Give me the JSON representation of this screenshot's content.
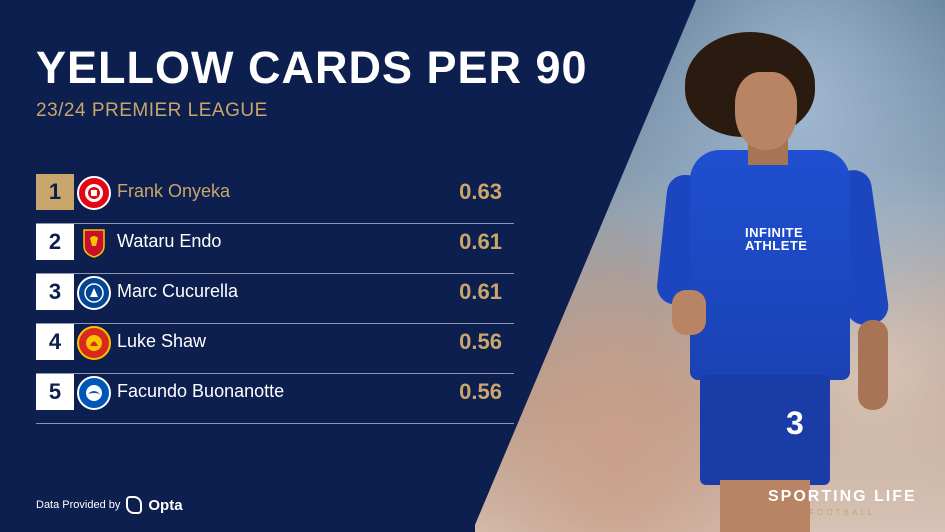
{
  "header": {
    "title": "YELLOW CARDS PER 90",
    "subtitle": "23/24 PREMIER LEAGUE"
  },
  "ranking": [
    {
      "rank": "1",
      "player": "Frank Onyeka",
      "value": "0.63",
      "crest": "brentford-crest-icon",
      "crest_color": "#e30613"
    },
    {
      "rank": "2",
      "player": "Wataru Endo",
      "value": "0.61",
      "crest": "liverpool-crest-icon",
      "crest_color": "#c8102e"
    },
    {
      "rank": "3",
      "player": "Marc Cucurella",
      "value": "0.61",
      "crest": "chelsea-crest-icon",
      "crest_color": "#034694"
    },
    {
      "rank": "4",
      "player": "Luke Shaw",
      "value": "0.56",
      "crest": "man-utd-crest-icon",
      "crest_color": "#da291c"
    },
    {
      "rank": "5",
      "player": "Facundo Buonanotte",
      "value": "0.56",
      "crest": "brighton-crest-icon",
      "crest_color": "#0057b8"
    }
  ],
  "footer": {
    "data_label": "Data Provided by",
    "provider": "Opta"
  },
  "brand": {
    "name": "SPORTING LIFE",
    "section": "FOOTBALL"
  },
  "photo": {
    "shirt_sponsor": "INFINITE ATHLETE",
    "shorts_number": "3"
  },
  "colors": {
    "navy": "#0d1f4e",
    "gold": "#c9a66b"
  }
}
